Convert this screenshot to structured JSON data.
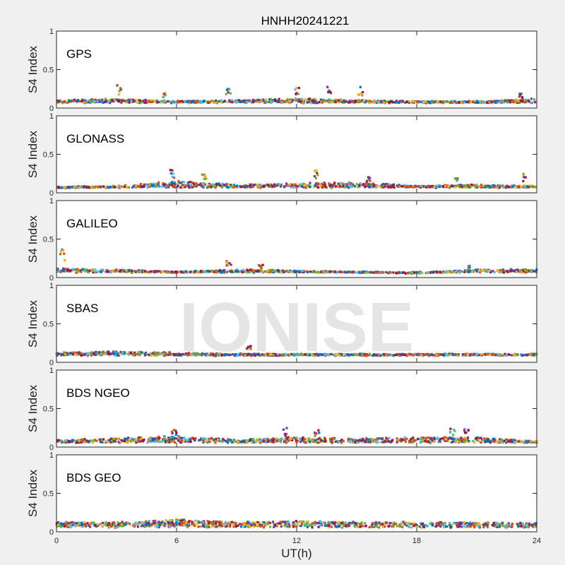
{
  "title": "HNHH20241221",
  "watermark": "IONISE",
  "xlabel": "UT(h)",
  "ylabel": "S4 Index",
  "colors": [
    "#0072bd",
    "#d95319",
    "#edb120",
    "#7e2f8e",
    "#77ac30",
    "#4dbeee",
    "#a2142f"
  ],
  "chart_data": [
    {
      "type": "scatter",
      "panel_label": "GPS",
      "xlim": [
        0,
        24
      ],
      "ylim": [
        0,
        1
      ],
      "xticks": [
        0,
        6,
        12,
        18,
        24
      ],
      "yticks": [
        0,
        0.5,
        1
      ],
      "baseline_s4": 0.07,
      "series_profile": [
        [
          0,
          0.09
        ],
        [
          3,
          0.1
        ],
        [
          6,
          0.08
        ],
        [
          9,
          0.09
        ],
        [
          12,
          0.1
        ],
        [
          15,
          0.09
        ],
        [
          18,
          0.08
        ],
        [
          21,
          0.08
        ],
        [
          24,
          0.1
        ]
      ],
      "peaks": [
        [
          3.1,
          0.3
        ],
        [
          5.4,
          0.2
        ],
        [
          8.6,
          0.25
        ],
        [
          12.0,
          0.28
        ],
        [
          13.6,
          0.33
        ],
        [
          15.2,
          0.28
        ],
        [
          23.2,
          0.21
        ]
      ]
    },
    {
      "type": "scatter",
      "panel_label": "GLONASS",
      "xlim": [
        0,
        24
      ],
      "ylim": [
        0,
        1
      ],
      "xticks": [
        0,
        6,
        12,
        18,
        24
      ],
      "yticks": [
        0,
        0.5,
        1
      ],
      "baseline_s4": 0.07,
      "series_profile": [
        [
          0,
          0.07
        ],
        [
          3,
          0.08
        ],
        [
          6,
          0.12
        ],
        [
          9,
          0.09
        ],
        [
          12,
          0.1
        ],
        [
          15,
          0.11
        ],
        [
          18,
          0.08
        ],
        [
          21,
          0.09
        ],
        [
          24,
          0.08
        ]
      ],
      "peaks": [
        [
          5.8,
          0.33
        ],
        [
          7.4,
          0.24
        ],
        [
          13.0,
          0.3
        ],
        [
          15.6,
          0.22
        ],
        [
          20.0,
          0.2
        ],
        [
          23.4,
          0.25
        ]
      ]
    },
    {
      "type": "scatter",
      "panel_label": "GALILEO",
      "xlim": [
        0,
        24
      ],
      "ylim": [
        0,
        1
      ],
      "xticks": [
        0,
        6,
        12,
        18,
        24
      ],
      "yticks": [
        0,
        0.5,
        1
      ],
      "baseline_s4": 0.07,
      "series_profile": [
        [
          0,
          0.1
        ],
        [
          3,
          0.09
        ],
        [
          6,
          0.07
        ],
        [
          9,
          0.09
        ],
        [
          12,
          0.08
        ],
        [
          15,
          0.07
        ],
        [
          18,
          0.06
        ],
        [
          21,
          0.09
        ],
        [
          24,
          0.09
        ]
      ],
      "peaks": [
        [
          0.3,
          0.38
        ],
        [
          8.6,
          0.22
        ],
        [
          10.2,
          0.18
        ],
        [
          20.6,
          0.16
        ]
      ]
    },
    {
      "type": "scatter",
      "panel_label": "SBAS",
      "xlim": [
        0,
        24
      ],
      "ylim": [
        0,
        1
      ],
      "xticks": [
        0,
        6,
        12,
        18,
        24
      ],
      "yticks": [
        0,
        0.5,
        1
      ],
      "baseline_s4": 0.09,
      "series_profile": [
        [
          0,
          0.11
        ],
        [
          3,
          0.12
        ],
        [
          6,
          0.11
        ],
        [
          9,
          0.1
        ],
        [
          12,
          0.1
        ],
        [
          15,
          0.1
        ],
        [
          18,
          0.1
        ],
        [
          21,
          0.1
        ],
        [
          24,
          0.1
        ]
      ],
      "peaks": [
        [
          9.6,
          0.22
        ]
      ]
    },
    {
      "type": "scatter",
      "panel_label": "BDS NGEO",
      "xlim": [
        0,
        24
      ],
      "ylim": [
        0,
        1
      ],
      "xticks": [
        0,
        6,
        12,
        18,
        24
      ],
      "yticks": [
        0,
        0.5,
        1
      ],
      "baseline_s4": 0.06,
      "series_profile": [
        [
          0,
          0.08
        ],
        [
          3,
          0.09
        ],
        [
          6,
          0.11
        ],
        [
          9,
          0.08
        ],
        [
          12,
          0.1
        ],
        [
          15,
          0.09
        ],
        [
          18,
          0.1
        ],
        [
          21,
          0.1
        ],
        [
          24,
          0.07
        ]
      ],
      "peaks": [
        [
          5.9,
          0.24
        ],
        [
          11.4,
          0.25
        ],
        [
          13.0,
          0.22
        ],
        [
          19.8,
          0.25
        ],
        [
          20.5,
          0.29
        ]
      ]
    },
    {
      "type": "scatter",
      "panel_label": "BDS GEO",
      "xlim": [
        0,
        24
      ],
      "ylim": [
        0,
        1
      ],
      "xticks": [
        0,
        6,
        12,
        18,
        24
      ],
      "yticks": [
        0,
        0.5,
        1
      ],
      "baseline_s4": 0.06,
      "series_profile": [
        [
          0,
          0.1
        ],
        [
          3,
          0.1
        ],
        [
          6,
          0.12
        ],
        [
          9,
          0.1
        ],
        [
          12,
          0.11
        ],
        [
          15,
          0.1
        ],
        [
          18,
          0.1
        ],
        [
          21,
          0.1
        ],
        [
          24,
          0.09
        ]
      ],
      "peaks": []
    }
  ]
}
